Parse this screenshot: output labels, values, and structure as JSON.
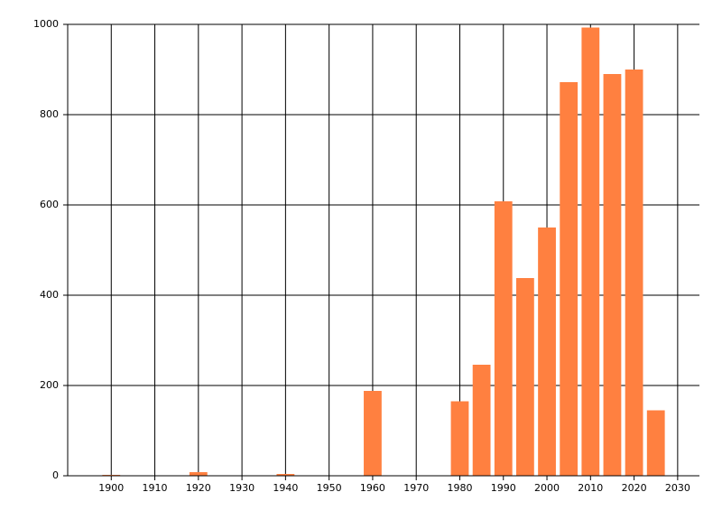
{
  "chart_data": {
    "type": "bar",
    "x": [
      1900,
      1920,
      1940,
      1960,
      1980,
      1985,
      1990,
      1995,
      2000,
      2005,
      2010,
      2015,
      2020,
      2025
    ],
    "values": [
      2,
      8,
      4,
      188,
      165,
      246,
      608,
      438,
      550,
      872,
      993,
      890,
      900,
      145
    ],
    "color": "#ff8040",
    "xlim": [
      1890,
      2035
    ],
    "xticks": [
      1900,
      1910,
      1920,
      1930,
      1940,
      1950,
      1960,
      1970,
      1980,
      1990,
      2000,
      2010,
      2020,
      2030
    ],
    "ylim": [
      0,
      1000
    ],
    "yticks": [
      0,
      200,
      400,
      600,
      800,
      1000
    ],
    "grid": true
  }
}
